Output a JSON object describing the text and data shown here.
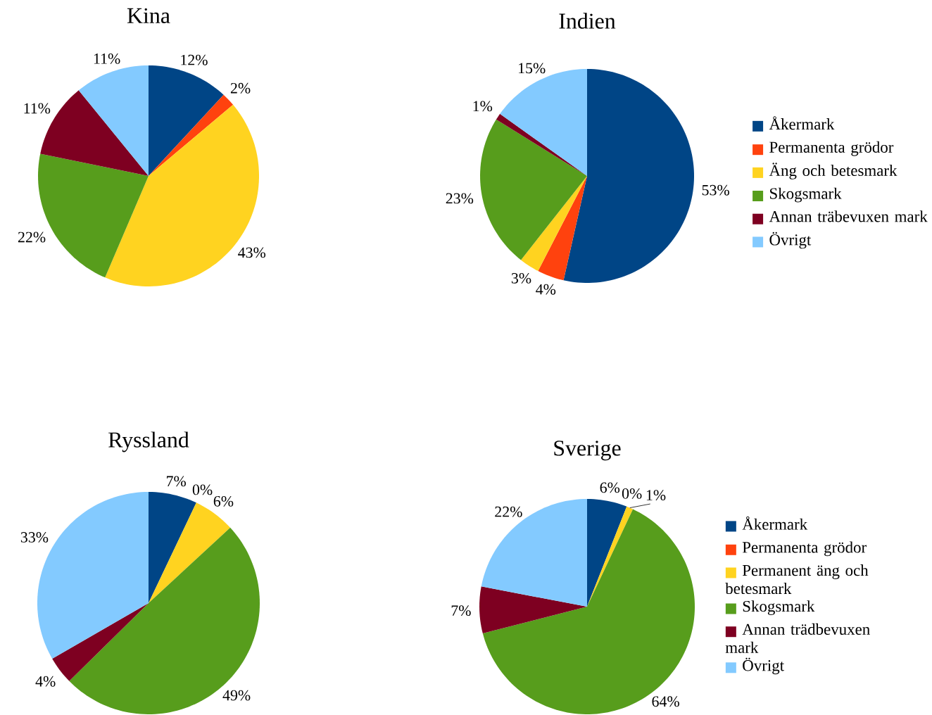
{
  "chart_data": [
    {
      "type": "pie",
      "title": "Kina",
      "categories": [
        null,
        null,
        null,
        null,
        null,
        null
      ],
      "values": [
        12,
        2,
        43,
        22,
        11,
        11
      ],
      "value_labels": [
        "12%",
        "2%",
        "43%",
        "22%",
        "11%",
        "11%"
      ],
      "colors": [
        "#004586",
        "#ff420e",
        "#ffd320",
        "#579d1c",
        "#7e0021",
        "#83caff"
      ],
      "legend": false
    },
    {
      "type": "pie",
      "title": "Indien",
      "categories": [
        "Åkermark",
        "Permanenta grödor",
        "Äng och betesmark",
        "Skogsmark",
        "Annan träbevuxen mark",
        "Övrigt"
      ],
      "values": [
        53,
        4,
        3,
        23,
        1,
        15
      ],
      "value_labels": [
        "53%",
        "4%",
        "3%",
        "23%",
        "1%",
        "15%"
      ],
      "colors": [
        "#004586",
        "#ff420e",
        "#ffd320",
        "#579d1c",
        "#7e0021",
        "#83caff"
      ],
      "legend": "right"
    },
    {
      "type": "pie",
      "title": "Ryssland",
      "categories": [
        null,
        null,
        null,
        null,
        null,
        null
      ],
      "values": [
        7,
        0,
        6,
        49,
        4,
        33
      ],
      "value_labels": [
        "7%",
        "0%",
        "6%",
        "49%",
        "4%",
        "33%"
      ],
      "colors": [
        "#004586",
        "#ff420e",
        "#ffd320",
        "#579d1c",
        "#7e0021",
        "#83caff"
      ],
      "legend": false
    },
    {
      "type": "pie",
      "title": "Sverige",
      "categories": [
        "Åkermark",
        "Permanenta grödor",
        "Permanent äng och betesmark",
        "Skogsmark",
        "Annan trädbevuxen mark",
        "Övrigt"
      ],
      "values": [
        6,
        0,
        1,
        64,
        7,
        22
      ],
      "value_labels": [
        "6%",
        "0%",
        "1%",
        "64%",
        "7%",
        "22%"
      ],
      "colors": [
        "#004586",
        "#ff420e",
        "#ffd320",
        "#579d1c",
        "#7e0021",
        "#83caff"
      ],
      "legend": "right"
    }
  ]
}
